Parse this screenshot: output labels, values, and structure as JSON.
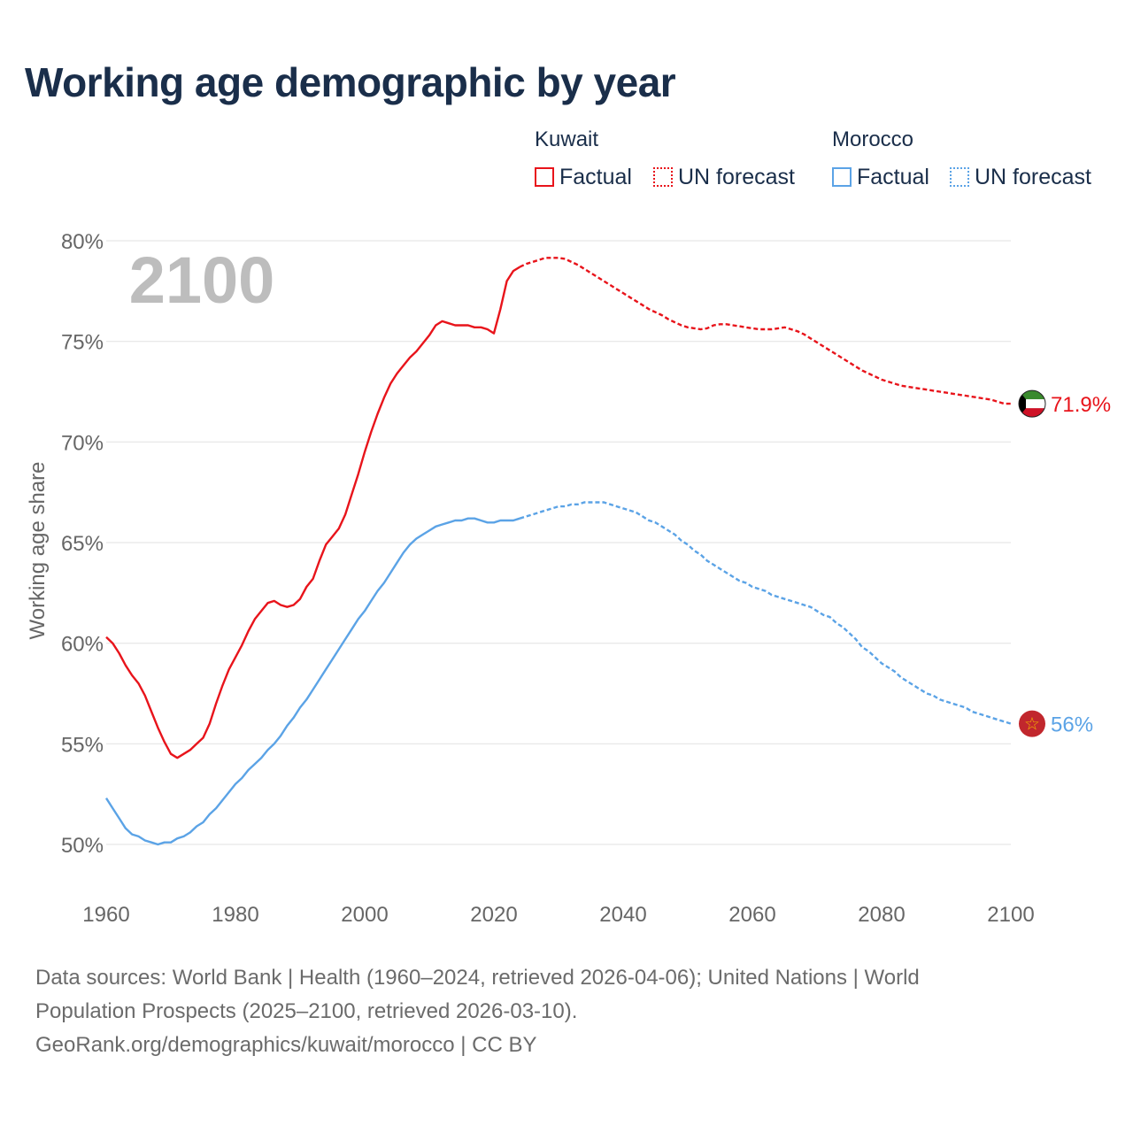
{
  "title": "Working age demographic by year",
  "legend": {
    "groups": [
      {
        "country": "Kuwait",
        "color": "#e8141b",
        "items": [
          {
            "label": "Factual",
            "style": "solid"
          },
          {
            "label": "UN forecast",
            "style": "dotted"
          }
        ]
      },
      {
        "country": "Morocco",
        "color": "#5ba3e6",
        "items": [
          {
            "label": "Factual",
            "style": "solid"
          },
          {
            "label": "UN forecast",
            "style": "dotted"
          }
        ]
      }
    ]
  },
  "year_display": "2100",
  "sources": {
    "line1": "Data sources: World Bank | Health (1960–2024, retrieved 2026-04-06); United Nations | World",
    "line2": "Population Prospects (2025–2100, retrieved 2026-03-10).",
    "line3": "GeoRank.org/demographics/kuwait/morocco | CC BY"
  },
  "chart_data": {
    "type": "line",
    "title": "Working age demographic by year",
    "xlabel": "",
    "ylabel": "Working age share",
    "xlim": [
      1960,
      2100
    ],
    "ylim": [
      48,
      80
    ],
    "yticks": [
      50,
      55,
      60,
      65,
      70,
      75,
      80
    ],
    "ytick_labels": [
      "50%",
      "55%",
      "60%",
      "65%",
      "70%",
      "75%",
      "80%"
    ],
    "xticks": [
      1960,
      1980,
      2000,
      2020,
      2040,
      2060,
      2080,
      2100
    ],
    "xtick_labels": [
      "1960",
      "1980",
      "2000",
      "2020",
      "2040",
      "2060",
      "2080",
      "2100"
    ],
    "grid": true,
    "factual_end_year": 2024,
    "series": [
      {
        "name": "Kuwait",
        "color": "#e8141b",
        "end_label": "71.9%",
        "flag": "kuwait-flag",
        "points": [
          [
            1960,
            60.3
          ],
          [
            1961,
            60.0
          ],
          [
            1962,
            59.5
          ],
          [
            1963,
            58.9
          ],
          [
            1964,
            58.4
          ],
          [
            1965,
            58.0
          ],
          [
            1966,
            57.4
          ],
          [
            1967,
            56.6
          ],
          [
            1968,
            55.8
          ],
          [
            1969,
            55.1
          ],
          [
            1970,
            54.5
          ],
          [
            1971,
            54.3
          ],
          [
            1972,
            54.5
          ],
          [
            1973,
            54.7
          ],
          [
            1974,
            55.0
          ],
          [
            1975,
            55.3
          ],
          [
            1976,
            56.0
          ],
          [
            1977,
            57.0
          ],
          [
            1978,
            57.9
          ],
          [
            1979,
            58.7
          ],
          [
            1980,
            59.3
          ],
          [
            1981,
            59.9
          ],
          [
            1982,
            60.6
          ],
          [
            1983,
            61.2
          ],
          [
            1984,
            61.6
          ],
          [
            1985,
            62.0
          ],
          [
            1986,
            62.1
          ],
          [
            1987,
            61.9
          ],
          [
            1988,
            61.8
          ],
          [
            1989,
            61.9
          ],
          [
            1990,
            62.2
          ],
          [
            1991,
            62.8
          ],
          [
            1992,
            63.2
          ],
          [
            1993,
            64.1
          ],
          [
            1994,
            64.9
          ],
          [
            1995,
            65.3
          ],
          [
            1996,
            65.7
          ],
          [
            1997,
            66.4
          ],
          [
            1998,
            67.4
          ],
          [
            1999,
            68.4
          ],
          [
            2000,
            69.5
          ],
          [
            2001,
            70.5
          ],
          [
            2002,
            71.4
          ],
          [
            2003,
            72.2
          ],
          [
            2004,
            72.9
          ],
          [
            2005,
            73.4
          ],
          [
            2006,
            73.8
          ],
          [
            2007,
            74.2
          ],
          [
            2008,
            74.5
          ],
          [
            2009,
            74.9
          ],
          [
            2010,
            75.3
          ],
          [
            2011,
            75.8
          ],
          [
            2012,
            76.0
          ],
          [
            2013,
            75.9
          ],
          [
            2014,
            75.8
          ],
          [
            2015,
            75.8
          ],
          [
            2016,
            75.8
          ],
          [
            2017,
            75.7
          ],
          [
            2018,
            75.7
          ],
          [
            2019,
            75.6
          ],
          [
            2020,
            75.4
          ],
          [
            2021,
            76.6
          ],
          [
            2022,
            78.0
          ],
          [
            2023,
            78.5
          ],
          [
            2024,
            78.7
          ],
          [
            2025,
            78.85
          ],
          [
            2026,
            78.95
          ],
          [
            2027,
            79.05
          ],
          [
            2028,
            79.15
          ],
          [
            2029,
            79.15
          ],
          [
            2030,
            79.15
          ],
          [
            2031,
            79.1
          ],
          [
            2032,
            78.95
          ],
          [
            2033,
            78.8
          ],
          [
            2034,
            78.6
          ],
          [
            2035,
            78.4
          ],
          [
            2036,
            78.2
          ],
          [
            2037,
            78.0
          ],
          [
            2038,
            77.8
          ],
          [
            2039,
            77.6
          ],
          [
            2040,
            77.4
          ],
          [
            2041,
            77.2
          ],
          [
            2042,
            77.0
          ],
          [
            2043,
            76.8
          ],
          [
            2044,
            76.6
          ],
          [
            2045,
            76.45
          ],
          [
            2046,
            76.3
          ],
          [
            2047,
            76.1
          ],
          [
            2048,
            75.95
          ],
          [
            2049,
            75.8
          ],
          [
            2050,
            75.7
          ],
          [
            2051,
            75.65
          ],
          [
            2052,
            75.6
          ],
          [
            2053,
            75.65
          ],
          [
            2054,
            75.8
          ],
          [
            2055,
            75.85
          ],
          [
            2056,
            75.85
          ],
          [
            2057,
            75.8
          ],
          [
            2058,
            75.75
          ],
          [
            2059,
            75.7
          ],
          [
            2060,
            75.65
          ],
          [
            2061,
            75.6
          ],
          [
            2062,
            75.6
          ],
          [
            2063,
            75.6
          ],
          [
            2064,
            75.65
          ],
          [
            2065,
            75.7
          ],
          [
            2066,
            75.6
          ],
          [
            2067,
            75.5
          ],
          [
            2068,
            75.35
          ],
          [
            2069,
            75.15
          ],
          [
            2070,
            74.95
          ],
          [
            2071,
            74.75
          ],
          [
            2072,
            74.55
          ],
          [
            2073,
            74.35
          ],
          [
            2074,
            74.15
          ],
          [
            2075,
            73.95
          ],
          [
            2076,
            73.75
          ],
          [
            2077,
            73.55
          ],
          [
            2078,
            73.4
          ],
          [
            2079,
            73.25
          ],
          [
            2080,
            73.1
          ],
          [
            2081,
            73.0
          ],
          [
            2082,
            72.9
          ],
          [
            2083,
            72.8
          ],
          [
            2084,
            72.75
          ],
          [
            2085,
            72.7
          ],
          [
            2086,
            72.65
          ],
          [
            2087,
            72.6
          ],
          [
            2088,
            72.55
          ],
          [
            2089,
            72.5
          ],
          [
            2090,
            72.45
          ],
          [
            2091,
            72.4
          ],
          [
            2092,
            72.35
          ],
          [
            2093,
            72.3
          ],
          [
            2094,
            72.25
          ],
          [
            2095,
            72.2
          ],
          [
            2096,
            72.15
          ],
          [
            2097,
            72.1
          ],
          [
            2098,
            72.0
          ],
          [
            2099,
            71.9
          ],
          [
            2100,
            71.9
          ]
        ]
      },
      {
        "name": "Morocco",
        "color": "#5ba3e6",
        "end_label": "56%",
        "flag": "morocco-flag",
        "points": [
          [
            1960,
            52.3
          ],
          [
            1961,
            51.8
          ],
          [
            1962,
            51.3
          ],
          [
            1963,
            50.8
          ],
          [
            1964,
            50.5
          ],
          [
            1965,
            50.4
          ],
          [
            1966,
            50.2
          ],
          [
            1967,
            50.1
          ],
          [
            1968,
            50.0
          ],
          [
            1969,
            50.1
          ],
          [
            1970,
            50.1
          ],
          [
            1971,
            50.3
          ],
          [
            1972,
            50.4
          ],
          [
            1973,
            50.6
          ],
          [
            1974,
            50.9
          ],
          [
            1975,
            51.1
          ],
          [
            1976,
            51.5
          ],
          [
            1977,
            51.8
          ],
          [
            1978,
            52.2
          ],
          [
            1979,
            52.6
          ],
          [
            1980,
            53.0
          ],
          [
            1981,
            53.3
          ],
          [
            1982,
            53.7
          ],
          [
            1983,
            54.0
          ],
          [
            1984,
            54.3
          ],
          [
            1985,
            54.7
          ],
          [
            1986,
            55.0
          ],
          [
            1987,
            55.4
          ],
          [
            1988,
            55.9
          ],
          [
            1989,
            56.3
          ],
          [
            1990,
            56.8
          ],
          [
            1991,
            57.2
          ],
          [
            1992,
            57.7
          ],
          [
            1993,
            58.2
          ],
          [
            1994,
            58.7
          ],
          [
            1995,
            59.2
          ],
          [
            1996,
            59.7
          ],
          [
            1997,
            60.2
          ],
          [
            1998,
            60.7
          ],
          [
            1999,
            61.2
          ],
          [
            2000,
            61.6
          ],
          [
            2001,
            62.1
          ],
          [
            2002,
            62.6
          ],
          [
            2003,
            63.0
          ],
          [
            2004,
            63.5
          ],
          [
            2005,
            64.0
          ],
          [
            2006,
            64.5
          ],
          [
            2007,
            64.9
          ],
          [
            2008,
            65.2
          ],
          [
            2009,
            65.4
          ],
          [
            2010,
            65.6
          ],
          [
            2011,
            65.8
          ],
          [
            2012,
            65.9
          ],
          [
            2013,
            66.0
          ],
          [
            2014,
            66.1
          ],
          [
            2015,
            66.1
          ],
          [
            2016,
            66.2
          ],
          [
            2017,
            66.2
          ],
          [
            2018,
            66.1
          ],
          [
            2019,
            66.0
          ],
          [
            2020,
            66.0
          ],
          [
            2021,
            66.1
          ],
          [
            2022,
            66.1
          ],
          [
            2023,
            66.1
          ],
          [
            2024,
            66.2
          ],
          [
            2025,
            66.3
          ],
          [
            2026,
            66.4
          ],
          [
            2027,
            66.5
          ],
          [
            2028,
            66.6
          ],
          [
            2029,
            66.7
          ],
          [
            2030,
            66.8
          ],
          [
            2031,
            66.8
          ],
          [
            2032,
            66.9
          ],
          [
            2033,
            66.9
          ],
          [
            2034,
            67.0
          ],
          [
            2035,
            67.0
          ],
          [
            2036,
            67.0
          ],
          [
            2037,
            67.0
          ],
          [
            2038,
            66.9
          ],
          [
            2039,
            66.8
          ],
          [
            2040,
            66.7
          ],
          [
            2041,
            66.6
          ],
          [
            2042,
            66.5
          ],
          [
            2043,
            66.3
          ],
          [
            2044,
            66.1
          ],
          [
            2045,
            66.0
          ],
          [
            2046,
            65.8
          ],
          [
            2047,
            65.6
          ],
          [
            2048,
            65.4
          ],
          [
            2049,
            65.1
          ],
          [
            2050,
            64.9
          ],
          [
            2051,
            64.6
          ],
          [
            2052,
            64.4
          ],
          [
            2053,
            64.1
          ],
          [
            2054,
            63.9
          ],
          [
            2055,
            63.7
          ],
          [
            2056,
            63.5
          ],
          [
            2057,
            63.3
          ],
          [
            2058,
            63.1
          ],
          [
            2059,
            63.0
          ],
          [
            2060,
            62.8
          ],
          [
            2061,
            62.7
          ],
          [
            2062,
            62.6
          ],
          [
            2063,
            62.4
          ],
          [
            2064,
            62.3
          ],
          [
            2065,
            62.2
          ],
          [
            2066,
            62.1
          ],
          [
            2067,
            62.0
          ],
          [
            2068,
            61.9
          ],
          [
            2069,
            61.8
          ],
          [
            2070,
            61.6
          ],
          [
            2071,
            61.4
          ],
          [
            2072,
            61.3
          ],
          [
            2073,
            61.0
          ],
          [
            2074,
            60.8
          ],
          [
            2075,
            60.5
          ],
          [
            2076,
            60.2
          ],
          [
            2077,
            59.8
          ],
          [
            2078,
            59.6
          ],
          [
            2079,
            59.3
          ],
          [
            2080,
            59.0
          ],
          [
            2081,
            58.8
          ],
          [
            2082,
            58.6
          ],
          [
            2083,
            58.3
          ],
          [
            2084,
            58.1
          ],
          [
            2085,
            57.9
          ],
          [
            2086,
            57.7
          ],
          [
            2087,
            57.5
          ],
          [
            2088,
            57.4
          ],
          [
            2089,
            57.2
          ],
          [
            2090,
            57.1
          ],
          [
            2091,
            57.0
          ],
          [
            2092,
            56.9
          ],
          [
            2093,
            56.8
          ],
          [
            2094,
            56.6
          ],
          [
            2095,
            56.5
          ],
          [
            2096,
            56.4
          ],
          [
            2097,
            56.3
          ],
          [
            2098,
            56.2
          ],
          [
            2099,
            56.1
          ],
          [
            2100,
            56.0
          ]
        ]
      }
    ]
  }
}
